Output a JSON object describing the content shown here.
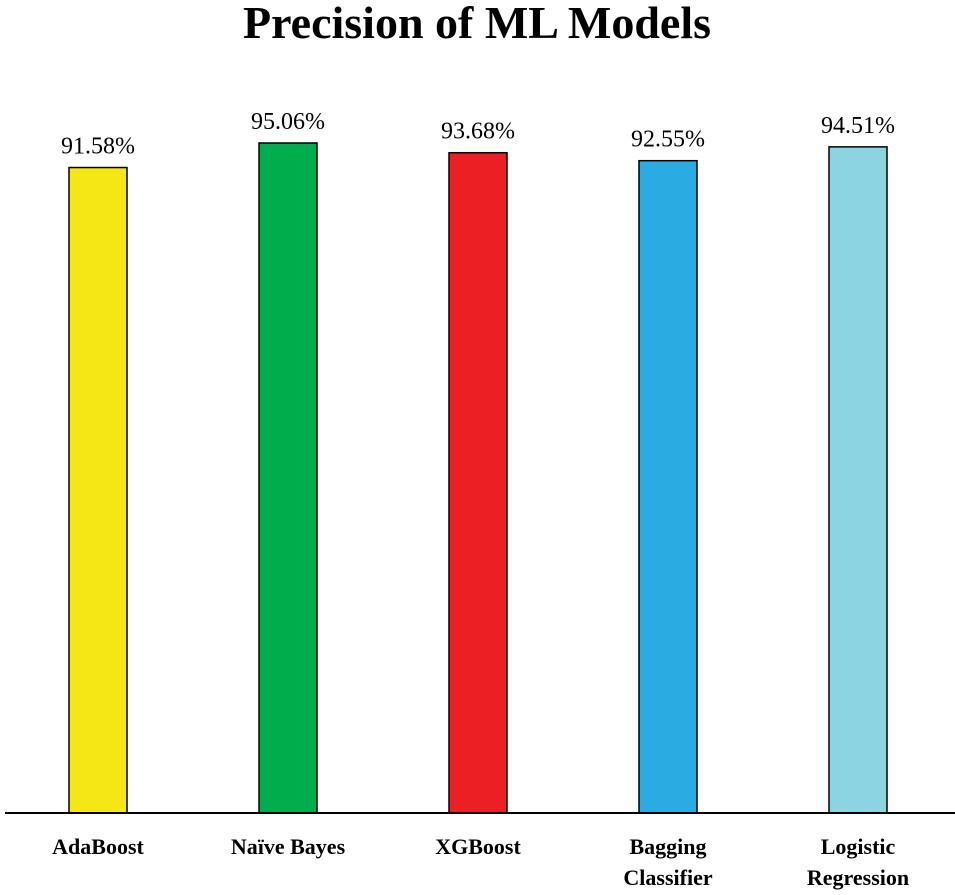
{
  "chart_data": {
    "type": "bar",
    "title": "Precision of ML Models",
    "xlabel": "",
    "ylabel": "",
    "ylim": [
      0,
      95.06
    ],
    "grid": false,
    "categories": [
      [
        "AdaBoost"
      ],
      [
        "Naïve Bayes"
      ],
      [
        "XGBoost"
      ],
      [
        "Bagging",
        "Classifier"
      ],
      [
        "Logistic",
        "Regression"
      ]
    ],
    "values": [
      91.58,
      95.06,
      93.68,
      92.55,
      94.51
    ],
    "value_labels": [
      "91.58%",
      "95.06%",
      "93.68%",
      "92.55%",
      "94.51%"
    ],
    "colors": [
      "#f5e616",
      "#00ad4d",
      "#ec2024",
      "#2aabe2",
      "#8dd4e2"
    ]
  }
}
